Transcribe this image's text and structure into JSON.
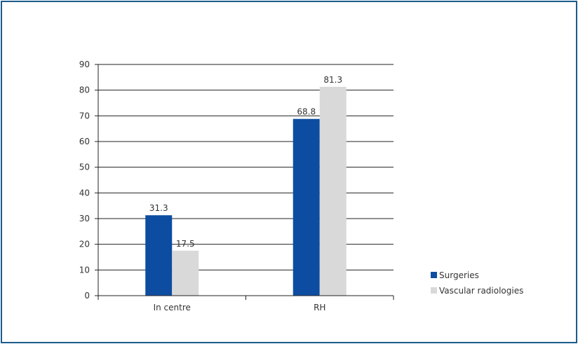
{
  "chart_data": {
    "type": "bar",
    "categories": [
      "In centre",
      "RH"
    ],
    "series": [
      {
        "name": "Surgeries",
        "values": [
          31.3,
          68.8
        ],
        "labels": [
          "31.3",
          "68.8"
        ],
        "color": "#0d4da1"
      },
      {
        "name": "Vascular radiologies",
        "values": [
          17.5,
          81.3
        ],
        "labels": [
          "17.5",
          "81.3"
        ],
        "color": "#d9d9d9"
      }
    ],
    "y_ticks": [
      "0",
      "10",
      "20",
      "30",
      "40",
      "50",
      "60",
      "70",
      "80",
      "90"
    ],
    "ylim": [
      0,
      90
    ],
    "grid": true,
    "legend": "bottom-right",
    "border_color": "#1a5b8c"
  }
}
